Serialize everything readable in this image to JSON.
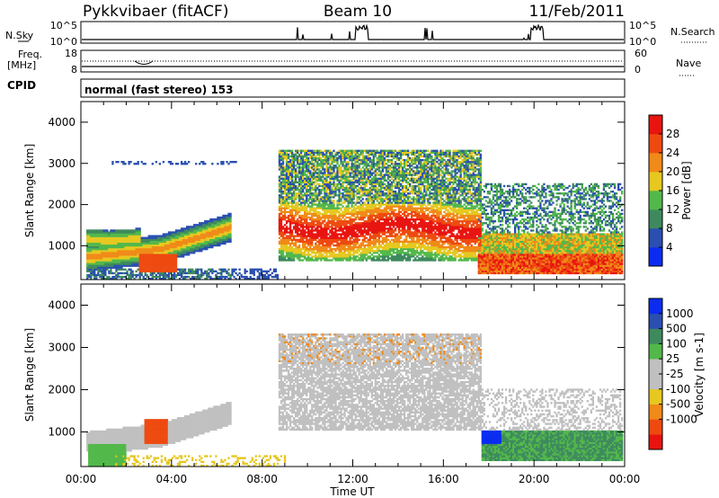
{
  "header": {
    "station": "Pykkvibaer (fitACF)",
    "beam": "Beam 10",
    "date": "11/Feb/2011"
  },
  "strips": {
    "nsky_label": "N.Sky",
    "nsky_ticks": [
      "10^5",
      "10^0"
    ],
    "nsearch_label": "N.Search",
    "nsearch_ticks": [
      "10^5",
      "10^0"
    ],
    "freq_label": "Freq.",
    "freq_unit": "[MHz]",
    "freq_ticks": [
      "18",
      "8"
    ],
    "nave_label": "Nave",
    "nave_ticks": [
      "60",
      "0"
    ],
    "cpid_label": "CPID",
    "cpid_text": "normal (fast stereo) 153"
  },
  "colors": {
    "power": [
      "#0b2cf0",
      "#2a4fb0",
      "#3e8a5e",
      "#52b84a",
      "#e6c820",
      "#f08a18",
      "#ee4a10",
      "#e81410"
    ],
    "velocity": [
      "#e81410",
      "#ee4a10",
      "#f08a18",
      "#e6c820",
      "#c0c0c0",
      "#c0c0c0",
      "#52b84a",
      "#3e8a5e",
      "#2a4fb0",
      "#0b2cf0"
    ],
    "ground_scatter": "#c0c0c0"
  },
  "chart_data": [
    {
      "type": "heatmap",
      "title": "",
      "panel": "power",
      "ylabel": "Slant Range [km]",
      "ylim": [
        180,
        4500
      ],
      "yticks": [
        "1000",
        "2000",
        "3000",
        "4000"
      ],
      "xlim_hours": [
        0,
        24
      ],
      "colorbar_label": "Power [dB]",
      "colorbar_ticks": [
        "4",
        "8",
        "12",
        "16",
        "20",
        "24",
        "28"
      ],
      "colorbar_range": [
        0,
        32
      ],
      "regions": [
        {
          "t0": 0.2,
          "t1": 6.6,
          "r0": 500,
          "r1": 1900,
          "level": "moderate"
        },
        {
          "t0": 1.5,
          "t1": 4.2,
          "r0": 300,
          "r1": 1000,
          "level": "strong"
        },
        {
          "t0": 8.7,
          "t1": 17.5,
          "r0": 600,
          "r1": 3300,
          "level": "strong"
        },
        {
          "t0": 17.5,
          "t1": 23.9,
          "r0": 300,
          "r1": 2500,
          "level": "moderate"
        }
      ]
    },
    {
      "type": "heatmap",
      "title": "",
      "panel": "velocity",
      "ylabel": "Slant Range [km]",
      "xlabel": "Time UT",
      "ylim": [
        180,
        4500
      ],
      "yticks": [
        "1000",
        "2000",
        "3000",
        "4000"
      ],
      "xlim_hours": [
        0,
        24
      ],
      "xticks": [
        "00:00",
        "04:00",
        "08:00",
        "12:00",
        "16:00",
        "20:00",
        "00:00"
      ],
      "colorbar_label": "Velocity [m s-1]",
      "colorbar_ticks": [
        "1000",
        "500",
        "100",
        "25",
        "-25",
        "-100",
        "-500",
        "-1000"
      ],
      "regions": [
        {
          "t0": 0.2,
          "t1": 6.6,
          "r0": 500,
          "r1": 1900,
          "class": "ground scatter"
        },
        {
          "t0": 2.8,
          "t1": 3.8,
          "r0": 700,
          "r1": 1300,
          "class": "negative"
        },
        {
          "t0": 8.7,
          "t1": 17.6,
          "r0": 1000,
          "r1": 3300,
          "class": "ground scatter"
        },
        {
          "t0": 17.6,
          "t1": 23.9,
          "r0": 300,
          "r1": 1000,
          "class": "positive"
        }
      ]
    }
  ]
}
